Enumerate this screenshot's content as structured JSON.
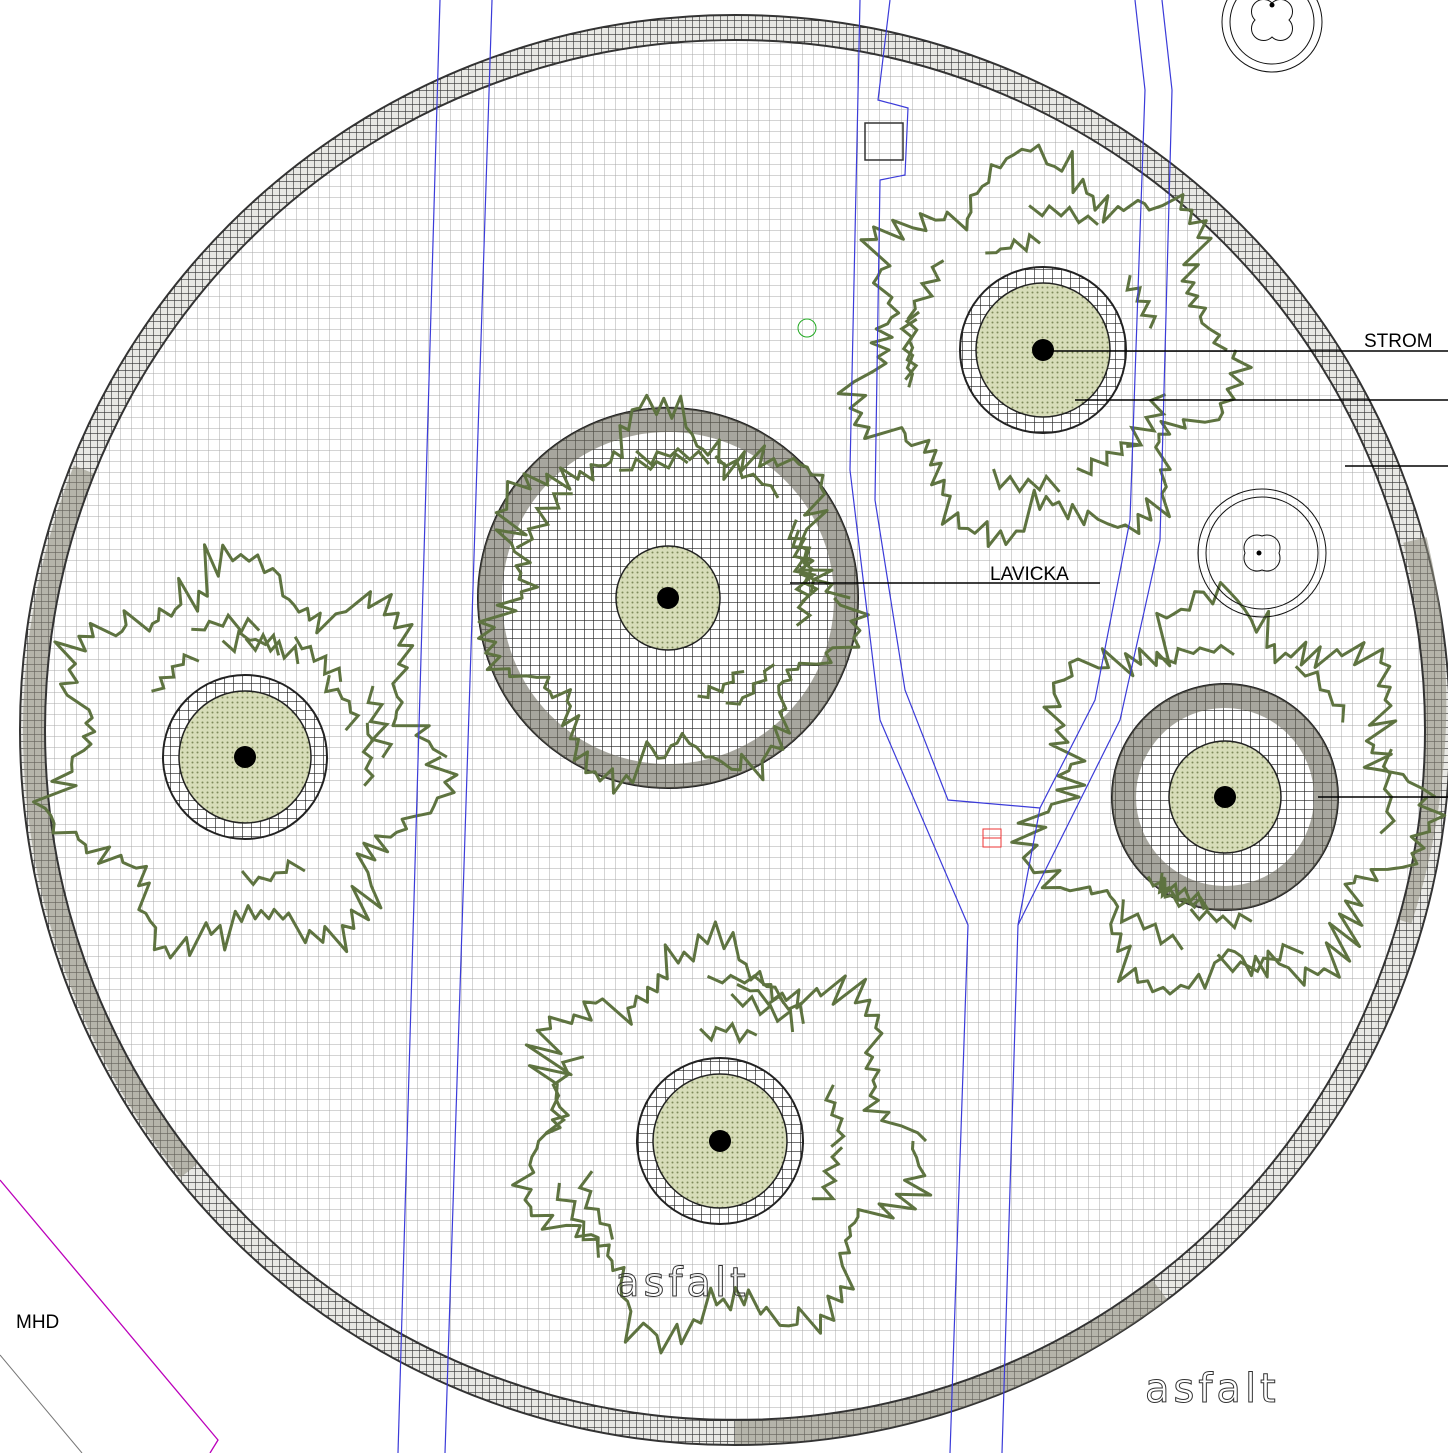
{
  "labels": [
    "STROM",
    "LAVICKA",
    "MHD",
    "asfalt",
    "asfalt"
  ]
}
